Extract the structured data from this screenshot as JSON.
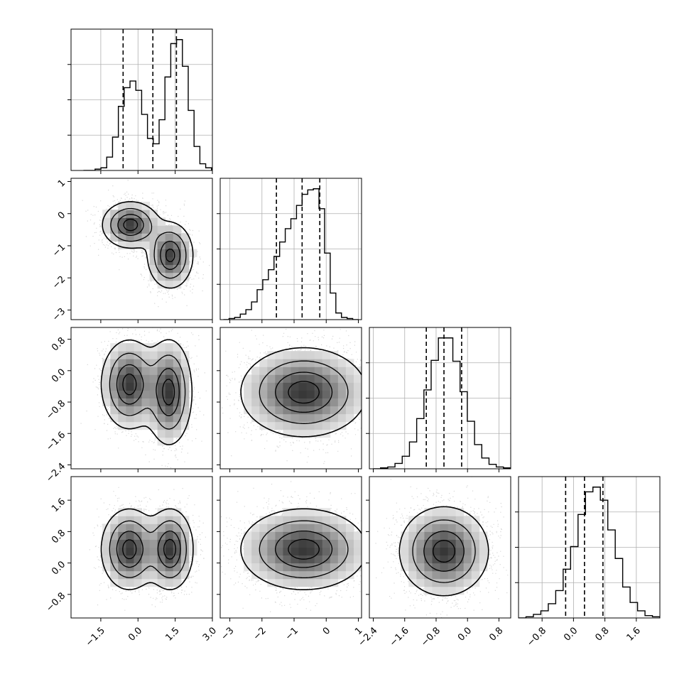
{
  "chart_data": {
    "type": "scatter",
    "subtype": "corner-plot",
    "dimensions": 4,
    "grid": true,
    "parameters": [
      {
        "index": 0,
        "label": "",
        "range": [
          -2.7,
          3.0
        ],
        "ticks": [
          -1.5,
          0.0,
          1.5,
          3.0
        ],
        "tick_labels": [
          "−1.5",
          "0.0",
          "1.5",
          "3.0"
        ],
        "quantiles": [
          -0.6,
          0.6,
          1.55
        ],
        "histogram_bins": [
          0,
          0,
          1,
          2,
          10,
          25,
          48,
          62,
          67,
          60,
          42,
          24,
          20,
          38,
          70,
          95,
          98,
          78,
          45,
          18,
          5,
          2,
          0
        ],
        "hist_range": [
          -2.2,
          3.2
        ]
      },
      {
        "index": 1,
        "label": "",
        "range": [
          -3.3,
          1.1
        ],
        "ticks": [
          -3,
          -2,
          -1,
          0,
          1
        ],
        "tick_labels": [
          "−3",
          "−2",
          "−1",
          "0",
          "1"
        ],
        "quantiles": [
          -1.55,
          -0.75,
          -0.2
        ],
        "histogram_bins": [
          0,
          1,
          2,
          5,
          9,
          16,
          27,
          36,
          45,
          57,
          70,
          82,
          91,
          103,
          113,
          117,
          118,
          100,
          60,
          24,
          6,
          2,
          1,
          0
        ],
        "hist_range": [
          -3.2,
          1.0
        ]
      },
      {
        "index": 2,
        "label": "",
        "range": [
          -2.5,
          1.1
        ],
        "ticks": [
          -2.4,
          -1.6,
          -0.8,
          0.0,
          0.8
        ],
        "tick_labels": [
          "−2.4",
          "−1.6",
          "−0.8",
          "0.0",
          "0.8"
        ],
        "quantiles": [
          -1.05,
          -0.6,
          -0.15
        ],
        "histogram_bins": [
          0,
          1,
          2,
          6,
          14,
          30,
          56,
          88,
          121,
          146,
          146,
          120,
          86,
          53,
          27,
          12,
          5,
          2,
          1
        ],
        "hist_range": [
          -2.4,
          1.1
        ]
      },
      {
        "index": 3,
        "label": "",
        "range": [
          -1.4,
          2.2
        ],
        "ticks": [
          -0.8,
          0.0,
          0.8,
          1.6
        ],
        "tick_labels": [
          "−0.8",
          "0.0",
          "0.8",
          "1.6"
        ],
        "quantiles": [
          -0.2,
          0.28,
          0.75
        ],
        "histogram_bins": [
          0,
          1,
          3,
          6,
          12,
          23,
          41,
          60,
          87,
          106,
          110,
          99,
          74,
          50,
          26,
          13,
          6,
          2,
          1
        ],
        "hist_range": [
          -1.4,
          2.2
        ]
      }
    ],
    "pairs": [
      {
        "x": 0,
        "y": 1,
        "modes": [
          [
            -0.3,
            -0.35,
            0.55,
            0.35,
            1.0
          ],
          [
            1.3,
            -1.3,
            0.45,
            0.5,
            0.95
          ]
        ]
      },
      {
        "x": 0,
        "y": 2,
        "modes": [
          [
            -0.35,
            -0.35,
            0.55,
            0.55,
            1.0
          ],
          [
            1.25,
            -0.55,
            0.45,
            0.65,
            1.0
          ]
        ]
      },
      {
        "x": 1,
        "y": 2,
        "modes": [
          [
            -0.7,
            -0.55,
            0.95,
            0.55,
            1.0
          ]
        ]
      },
      {
        "x": 0,
        "y": 3,
        "modes": [
          [
            -0.35,
            0.35,
            0.55,
            0.5,
            1.0
          ],
          [
            1.3,
            0.35,
            0.45,
            0.5,
            1.0
          ]
        ]
      },
      {
        "x": 1,
        "y": 3,
        "modes": [
          [
            -0.7,
            0.35,
            0.95,
            0.5,
            1.0
          ]
        ]
      },
      {
        "x": 2,
        "y": 3,
        "modes": [
          [
            -0.6,
            0.3,
            0.55,
            0.55,
            1.0
          ]
        ]
      }
    ],
    "contour_levels": [
      0.12,
      0.35,
      0.65,
      0.88
    ],
    "colors": {
      "line": "#000000",
      "scatter": "#8c8c8c",
      "grid": "#b0b0b0",
      "quantile": "#000000"
    }
  }
}
